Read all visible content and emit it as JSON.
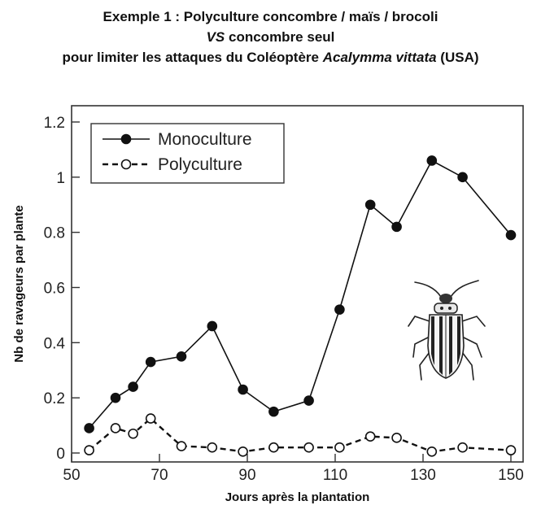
{
  "header": {
    "line1": "Exemple 1 : Polyculture concombre / maïs / brocoli",
    "line2_italic": "VS",
    "line2_rest": " concombre seul",
    "line3_start": "pour limiter les attaques du Coléoptère ",
    "line3_italic": "Acalymma vittata",
    "line3_end": " (USA)"
  },
  "chart_data": {
    "type": "line",
    "xlabel": "Jours après la plantation",
    "ylabel": "Nb de ravageurs par plante",
    "xlim": [
      50,
      152
    ],
    "ylim": [
      0,
      1.2
    ],
    "xticks": [
      50,
      70,
      90,
      110,
      130,
      150
    ],
    "yticks": [
      0,
      0.2,
      0.4,
      0.6,
      0.8,
      1,
      1.2
    ],
    "ytick_labels": [
      "0",
      "0.2",
      "0.4",
      "0.6",
      "0.8",
      "1",
      "1.2"
    ],
    "grid": false,
    "legend_position": "top-left",
    "series": [
      {
        "name": "Monoculture",
        "style": "solid",
        "marker": "filled-circle",
        "x": [
          54,
          60,
          64,
          68,
          75,
          82,
          89,
          96,
          104,
          111,
          118,
          124,
          132,
          139,
          150
        ],
        "y": [
          0.09,
          0.2,
          0.24,
          0.33,
          0.35,
          0.46,
          0.23,
          0.15,
          0.19,
          0.52,
          0.9,
          0.82,
          1.06,
          1.0,
          0.79
        ]
      },
      {
        "name": "Polyculture",
        "style": "dashed",
        "marker": "open-circle",
        "x": [
          54,
          60,
          64,
          68,
          75,
          82,
          89,
          96,
          104,
          111,
          118,
          124,
          132,
          139,
          150
        ],
        "y": [
          0.01,
          0.09,
          0.07,
          0.125,
          0.025,
          0.02,
          0.005,
          0.02,
          0.02,
          0.02,
          0.06,
          0.055,
          0.005,
          0.02,
          0.01
        ]
      }
    ]
  },
  "colors": {
    "line": "#111111",
    "axis": "#333333",
    "beetle_stripe": "#222222"
  },
  "illustration": {
    "icon": "beetle-icon"
  }
}
